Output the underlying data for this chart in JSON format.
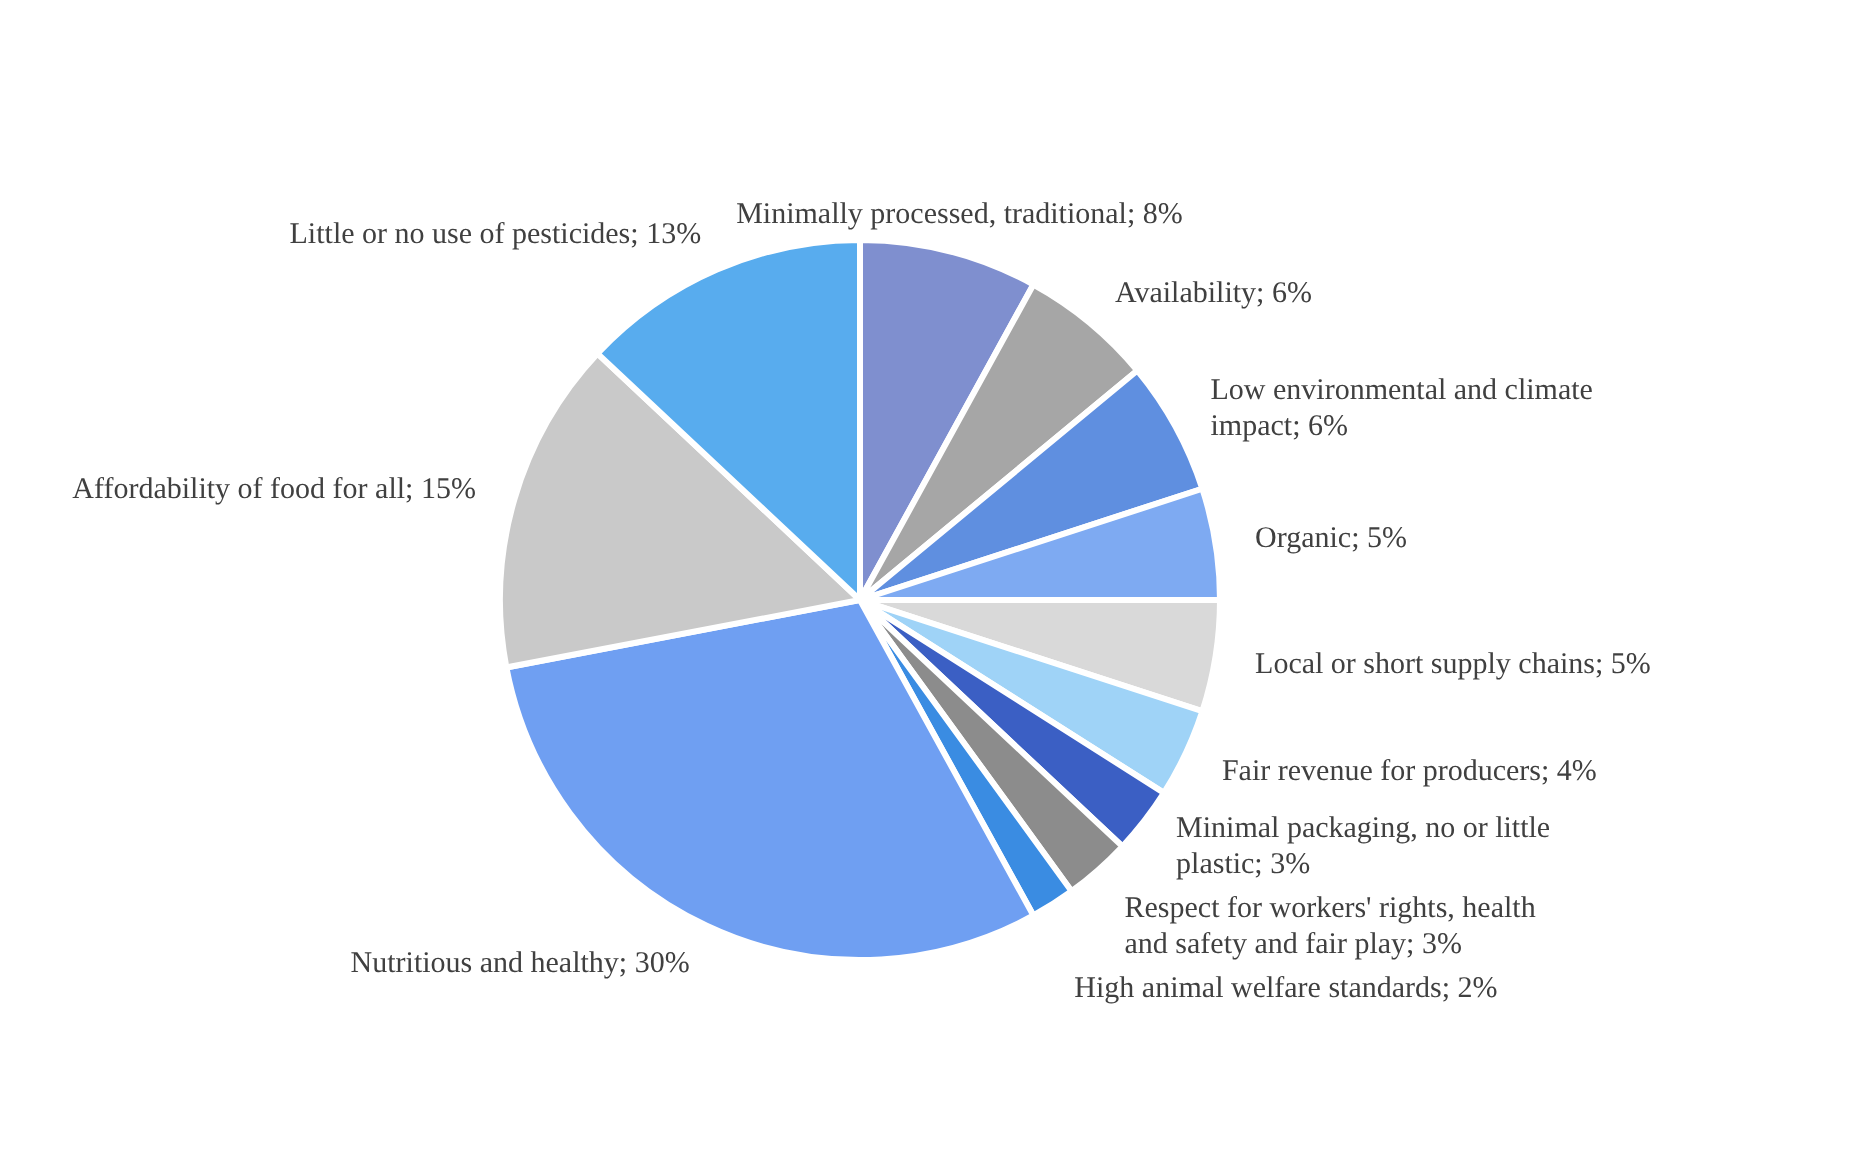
{
  "chart_data": {
    "type": "pie",
    "categories": [
      "Minimally processed, traditional",
      "Availability",
      "Low environmental and climate impact",
      "Organic",
      "Local or short supply chains",
      "Fair revenue for producers",
      "Minimal packaging, no or little plastic",
      "Respect for workers' rights, health and safety and fair play",
      "High animal welfare standards",
      "Nutritious and healthy",
      "Affordability of food for all",
      "Little or no use of pesticides"
    ],
    "value_labels": [
      "8%",
      "6%",
      "6%",
      "5%",
      "5%",
      "4%",
      "3%",
      "3%",
      "2%",
      "30%",
      "15%",
      "13%"
    ],
    "values": [
      8,
      6,
      6,
      5,
      5,
      4,
      3,
      3,
      2,
      30,
      15,
      13
    ],
    "colors": [
      "#7f8fcf",
      "#a6a6a6",
      "#5f8fe0",
      "#7eaaf2",
      "#d9d9d9",
      "#9fd3f7",
      "#3b5fc4",
      "#8c8c8c",
      "#3a8ce2",
      "#6f9ff2",
      "#c9c9c9",
      "#58acee"
    ]
  }
}
